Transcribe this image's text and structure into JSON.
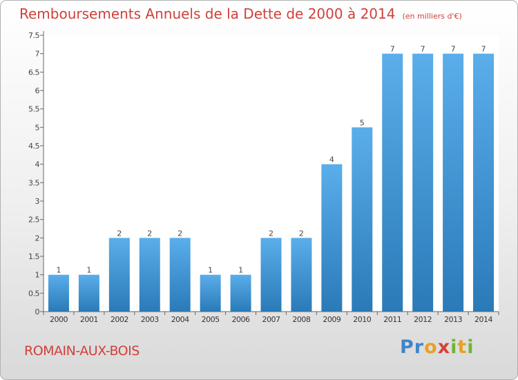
{
  "title": "Remboursements Annuels de la Dette de 2000 à 2014",
  "unit": "(en milliers d'€)",
  "commune": "ROMAIN-AUX-BOIS",
  "brand": {
    "logo_text": "Proxiti"
  },
  "colors": {
    "title": "#d0403a",
    "bar_top": "#5aaeea",
    "bar_bottom": "#2a7ab8"
  },
  "chart_data": {
    "type": "bar",
    "categories": [
      "2000",
      "2001",
      "2002",
      "2003",
      "2004",
      "2005",
      "2006",
      "2007",
      "2008",
      "2009",
      "2010",
      "2011",
      "2012",
      "2013",
      "2014"
    ],
    "values": [
      1,
      1,
      2,
      2,
      2,
      1,
      1,
      2,
      2,
      4,
      5,
      7,
      7,
      7,
      7
    ],
    "ylim": [
      0,
      7.5
    ],
    "yticks": [
      0,
      0.5,
      1,
      1.5,
      2,
      2.5,
      3,
      3.5,
      4,
      4.5,
      5,
      5.5,
      6,
      6.5,
      7,
      7.5
    ],
    "grid": false,
    "data_labels": true
  }
}
